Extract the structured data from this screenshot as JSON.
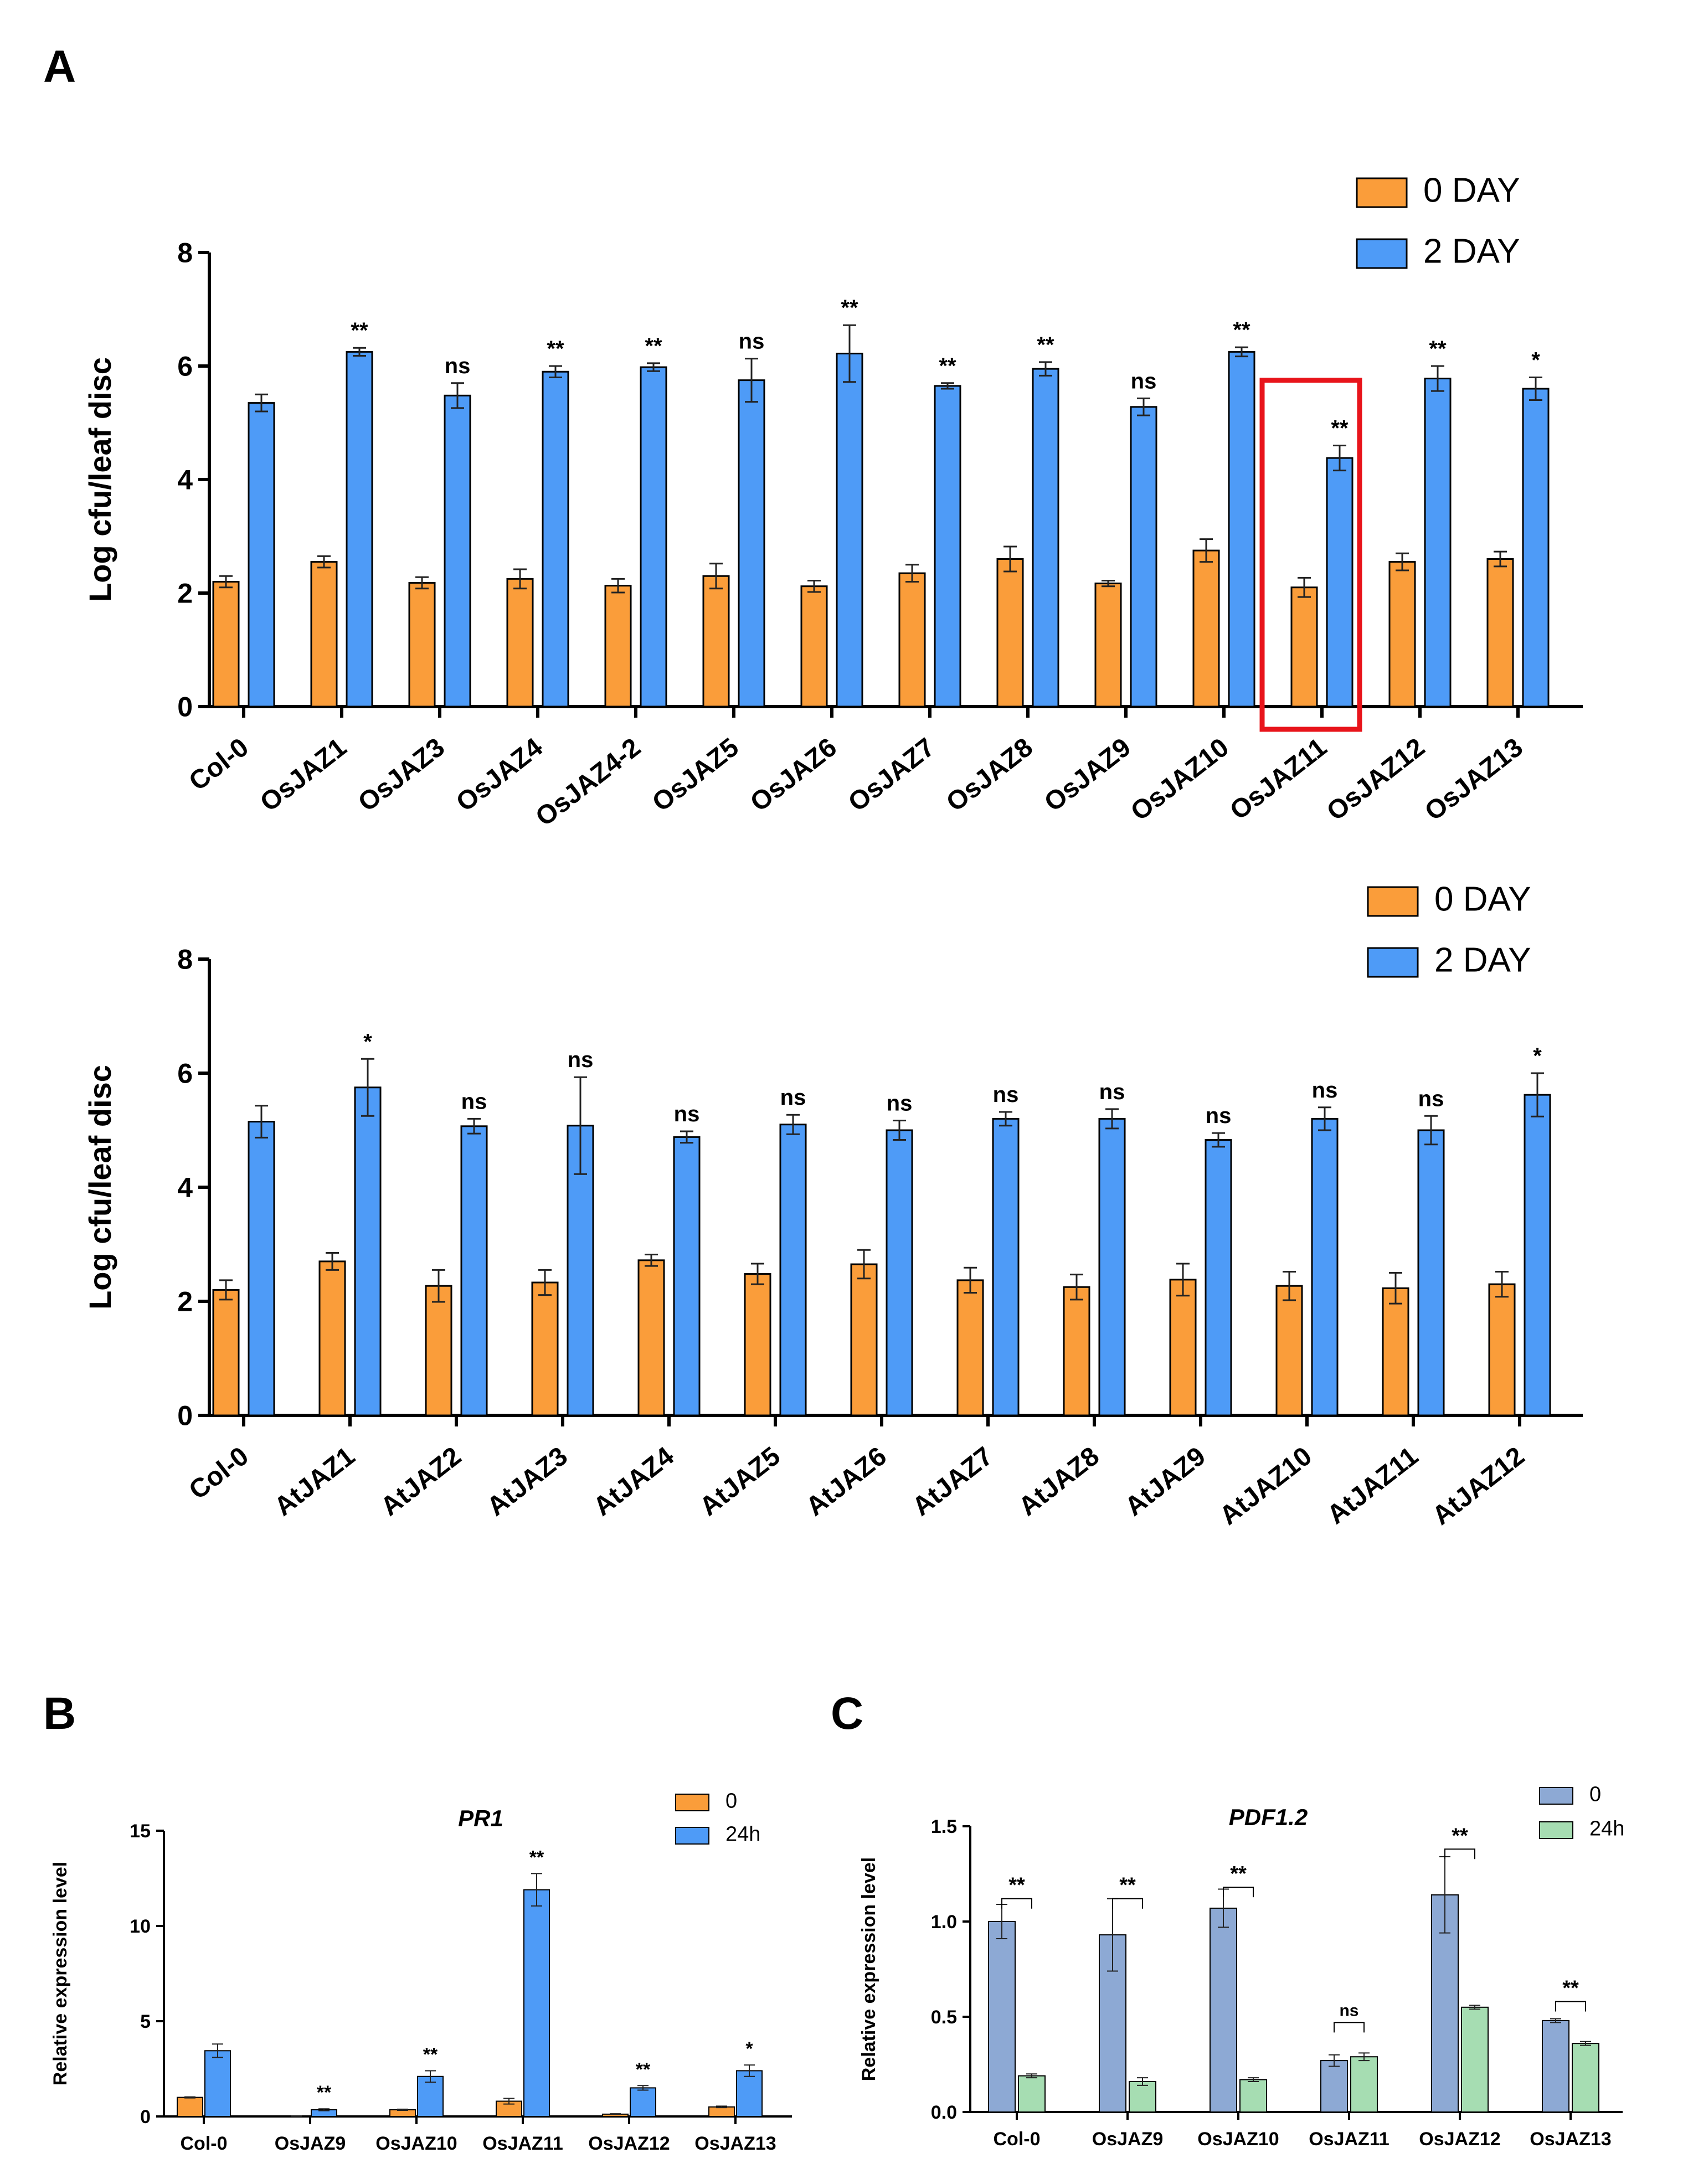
{
  "figure": {
    "panel_labels": [
      "A",
      "B",
      "C"
    ]
  },
  "chart_data": [
    {
      "id": "A1",
      "type": "bar",
      "title": "",
      "xlabel": "",
      "ylabel": "Log cfu/leaf disc",
      "ylim": [
        0,
        8
      ],
      "yticks": [
        "0",
        "2",
        "4",
        "6",
        "8"
      ],
      "categories": [
        "Col-0",
        "OsJAZ1",
        "OsJAZ3",
        "OsJAZ4",
        "OsJAZ4-2",
        "OsJAZ5",
        "OsJAZ6",
        "OsJAZ7",
        "OsJAZ8",
        "OsJAZ9",
        "OsJAZ10",
        "OsJAZ11",
        "OsJAZ12",
        "OsJAZ13"
      ],
      "series": [
        {
          "name": "0 DAY",
          "color": "#FA9D3A",
          "values": [
            2.2,
            2.55,
            2.18,
            2.25,
            2.13,
            2.3,
            2.12,
            2.35,
            2.6,
            2.17,
            2.75,
            2.1,
            2.55,
            2.6
          ],
          "errors": [
            0.1,
            0.1,
            0.1,
            0.17,
            0.12,
            0.22,
            0.1,
            0.15,
            0.22,
            0.05,
            0.2,
            0.17,
            0.15,
            0.13
          ]
        },
        {
          "name": "2 DAY",
          "color": "#4E9BF7",
          "values": [
            5.35,
            6.25,
            5.48,
            5.9,
            5.98,
            5.75,
            6.22,
            5.65,
            5.95,
            5.28,
            6.25,
            4.38,
            5.78,
            5.6
          ],
          "errors": [
            0.15,
            0.07,
            0.22,
            0.1,
            0.07,
            0.38,
            0.5,
            0.05,
            0.12,
            0.15,
            0.08,
            0.22,
            0.22,
            0.2
          ]
        }
      ],
      "significance": [
        "",
        "**",
        "ns",
        "**",
        "**",
        "ns",
        "**",
        "**",
        "**",
        "ns",
        "**",
        "**",
        "**",
        "*"
      ],
      "legend": [
        "0 DAY",
        "2 DAY"
      ],
      "legend_position": "top-right",
      "highlight_category": "OsJAZ11",
      "highlight_color": "#E8141B"
    },
    {
      "id": "A2",
      "type": "bar",
      "title": "",
      "xlabel": "",
      "ylabel": "Log cfu/leaf disc",
      "ylim": [
        0,
        8
      ],
      "yticks": [
        "0",
        "2",
        "4",
        "6",
        "8"
      ],
      "categories": [
        "Col-0",
        "AtJAZ1",
        "AtJAZ2",
        "AtJAZ3",
        "AtJAZ4",
        "AtJAZ5",
        "AtJAZ6",
        "AtJAZ7",
        "AtJAZ8",
        "AtJAZ9",
        "AtJAZ10",
        "AtJAZ11",
        "AtJAZ12"
      ],
      "series": [
        {
          "name": "0 DAY",
          "color": "#FA9D3A",
          "values": [
            2.2,
            2.7,
            2.27,
            2.33,
            2.72,
            2.48,
            2.65,
            2.37,
            2.25,
            2.38,
            2.27,
            2.23,
            2.3
          ],
          "errors": [
            0.17,
            0.15,
            0.28,
            0.22,
            0.1,
            0.18,
            0.25,
            0.22,
            0.22,
            0.28,
            0.25,
            0.27,
            0.22
          ]
        },
        {
          "name": "2 DAY",
          "color": "#4E9BF7",
          "values": [
            5.15,
            5.75,
            5.07,
            5.08,
            4.88,
            5.1,
            5.0,
            5.2,
            5.2,
            4.83,
            5.2,
            5.0,
            5.62
          ],
          "errors": [
            0.28,
            0.5,
            0.13,
            0.85,
            0.1,
            0.17,
            0.17,
            0.12,
            0.17,
            0.12,
            0.2,
            0.25,
            0.38
          ]
        }
      ],
      "significance": [
        "",
        "*",
        "ns",
        "ns",
        "ns",
        "ns",
        "ns",
        "ns",
        "ns",
        "ns",
        "ns",
        "ns",
        "*"
      ],
      "legend": [
        "0 DAY",
        "2 DAY"
      ],
      "legend_position": "top-right"
    },
    {
      "id": "B",
      "type": "bar",
      "title": "PR1",
      "xlabel": "",
      "ylabel": "Relative expression level",
      "ylim": [
        0,
        15
      ],
      "yticks": [
        "0",
        "5",
        "10",
        "15"
      ],
      "categories": [
        "Col-0",
        "OsJAZ9",
        "OsJAZ10",
        "OsJAZ11",
        "OsJAZ12",
        "OsJAZ13"
      ],
      "series": [
        {
          "name": "0",
          "color": "#FA9D3A",
          "values": [
            1.0,
            0.02,
            0.35,
            0.8,
            0.12,
            0.5
          ],
          "errors": [
            0.03,
            0.01,
            0.03,
            0.15,
            0.02,
            0.04
          ]
        },
        {
          "name": "24h",
          "color": "#4E9BF7",
          "values": [
            3.45,
            0.35,
            2.1,
            11.9,
            1.5,
            2.4
          ],
          "errors": [
            0.35,
            0.05,
            0.3,
            0.85,
            0.12,
            0.3
          ]
        }
      ],
      "significance": [
        "",
        "**",
        "**",
        "",
        "**",
        "*"
      ],
      "significance_top": [
        "",
        "",
        "",
        "**",
        "",
        ""
      ],
      "legend": [
        "0",
        "24h"
      ],
      "legend_position": "top-right"
    },
    {
      "id": "C",
      "type": "bar",
      "title": "PDF1.2",
      "xlabel": "",
      "ylabel": "Relative expression level",
      "ylim": [
        0,
        1.5
      ],
      "yticks": [
        "0.0",
        "0.5",
        "1.0",
        "1.5"
      ],
      "categories": [
        "Col-0",
        "OsJAZ9",
        "OsJAZ10",
        "OsJAZ11",
        "OsJAZ12",
        "OsJAZ13"
      ],
      "series": [
        {
          "name": "0",
          "color": "#8DA9D4",
          "values": [
            1.0,
            0.93,
            1.07,
            0.27,
            1.14,
            0.48
          ],
          "errors": [
            0.09,
            0.19,
            0.1,
            0.03,
            0.2,
            0.01
          ]
        },
        {
          "name": "24h",
          "color": "#A6DDB2",
          "values": [
            0.19,
            0.16,
            0.17,
            0.29,
            0.55,
            0.36
          ],
          "errors": [
            0.01,
            0.02,
            0.01,
            0.02,
            0.01,
            0.01
          ]
        }
      ],
      "significance": [
        "**",
        "**",
        "**",
        "ns",
        "**",
        "**"
      ],
      "bracket_heights": [
        1.12,
        1.12,
        1.18,
        0.47,
        1.38,
        0.58
      ],
      "legend": [
        "0",
        "24h"
      ],
      "legend_position": "top-right"
    }
  ]
}
